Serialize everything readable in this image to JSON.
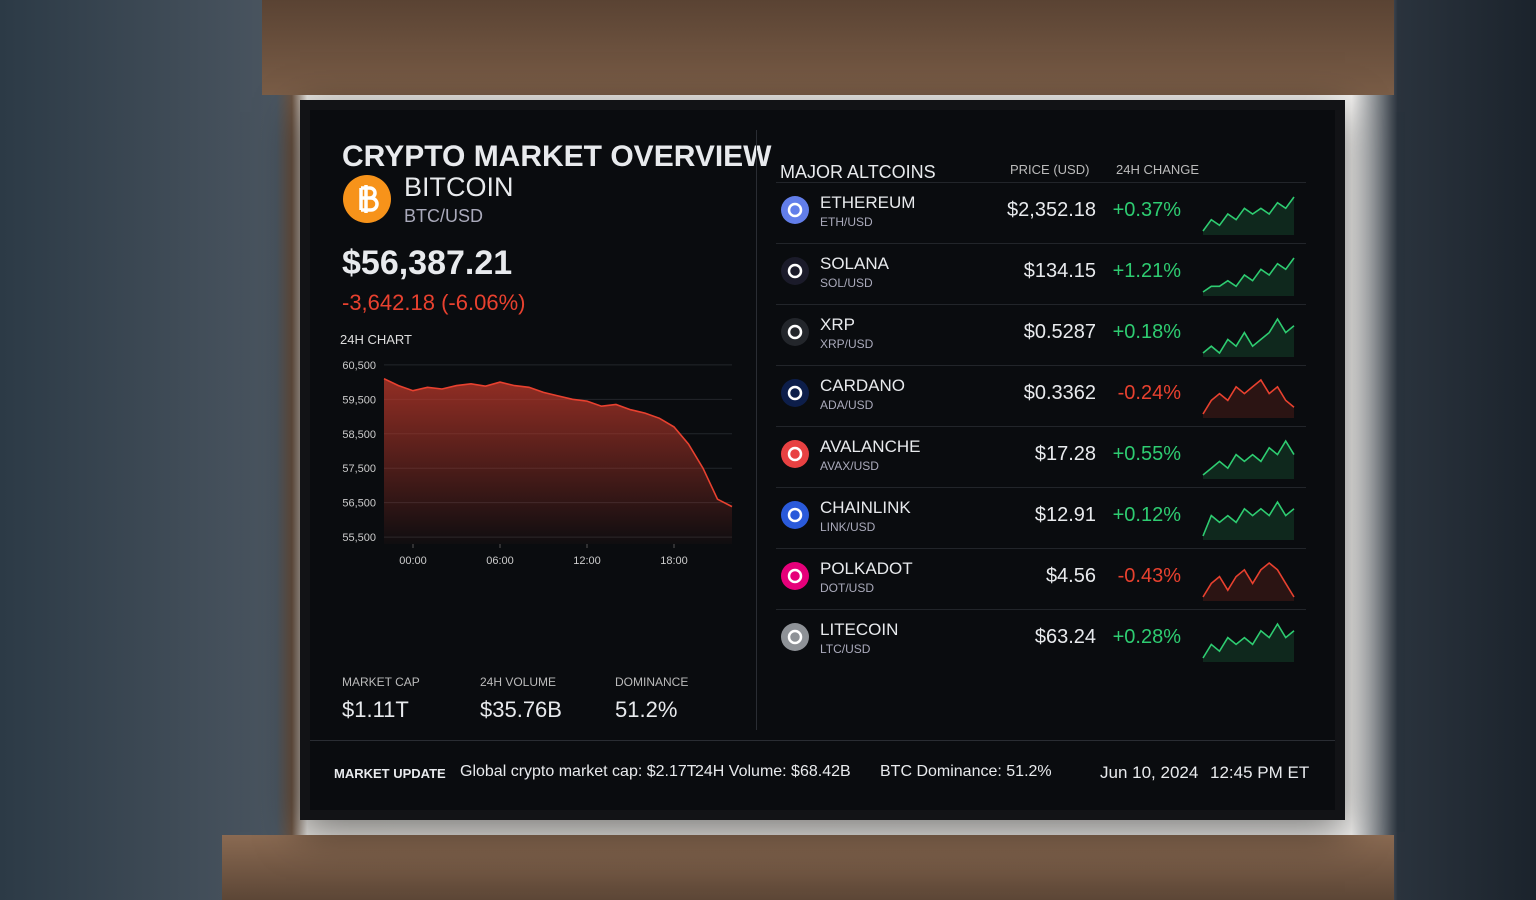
{
  "header": {
    "title": "CRYPTO MARKET OVERVIEW"
  },
  "bitcoin": {
    "name": "BITCOIN",
    "pair": "BTC/USD",
    "price": "$56,387.21",
    "change": "-3,642.18",
    "change_pct": "(-6.06%)"
  },
  "chart_data": {
    "type": "area",
    "title": "24H CHART",
    "color": "#e8412f",
    "x": [
      -2,
      -1,
      0,
      1,
      2,
      3,
      4,
      5,
      6,
      7,
      8,
      9,
      10,
      11,
      12,
      13,
      14,
      15,
      16,
      17,
      18,
      19,
      20,
      21,
      22
    ],
    "values": [
      60100,
      59900,
      59750,
      59850,
      59800,
      59900,
      59950,
      59880,
      60000,
      59900,
      59850,
      59700,
      59600,
      59500,
      59450,
      59300,
      59350,
      59200,
      59100,
      58950,
      58700,
      58200,
      57500,
      56600,
      56387
    ],
    "xlim": [
      -2,
      22
    ],
    "ylim": [
      55300,
      60700
    ],
    "xticks": [
      {
        "value": 0,
        "label": "00:00"
      },
      {
        "value": 6,
        "label": "06:00"
      },
      {
        "value": 12,
        "label": "12:00"
      },
      {
        "value": 18,
        "label": "18:00"
      }
    ],
    "yticks": [
      {
        "value": 55500,
        "label": "55,500"
      },
      {
        "value": 56500,
        "label": "56,500"
      },
      {
        "value": 57500,
        "label": "57,500"
      },
      {
        "value": 58500,
        "label": "58,500"
      },
      {
        "value": 59500,
        "label": "59,500"
      },
      {
        "value": 60500,
        "label": "60,500"
      }
    ],
    "grid": true
  },
  "altcoins": {
    "heading": "MAJOR ALTCOINS",
    "price_header": "PRICE (USD)",
    "change_header": "24H CHANGE",
    "rows": [
      {
        "name": "ETHEREUM",
        "pair": "ETH/USD",
        "price": "$2,352.18",
        "change": "+0.37%",
        "color": "#2ecc71",
        "icon": "#627eea",
        "spark": [
          2,
          4,
          3,
          5,
          4,
          6,
          5,
          6,
          5,
          7,
          6,
          8
        ]
      },
      {
        "name": "SOLANA",
        "pair": "SOL/USD",
        "price": "$134.15",
        "change": "+1.21%",
        "color": "#2ecc71",
        "icon": "#1b1b2a",
        "spark": [
          1,
          2,
          2,
          3,
          2,
          4,
          3,
          5,
          4,
          6,
          5,
          7
        ]
      },
      {
        "name": "XRP",
        "pair": "XRP/USD",
        "price": "$0.5287",
        "change": "+0.18%",
        "color": "#2ecc71",
        "icon": "#23262b",
        "spark": [
          2,
          3,
          2,
          4,
          3,
          5,
          3,
          4,
          5,
          7,
          5,
          6
        ]
      },
      {
        "name": "CARDANO",
        "pair": "ADA/USD",
        "price": "$0.3362",
        "change": "-0.24%",
        "color": "#e8412f",
        "icon": "#0d1e4a",
        "spark": [
          2,
          4,
          5,
          4,
          6,
          5,
          6,
          7,
          5,
          6,
          4,
          3
        ]
      },
      {
        "name": "AVALANCHE",
        "pair": "AVAX/USD",
        "price": "$17.28",
        "change": "+0.55%",
        "color": "#2ecc71",
        "icon": "#e84142",
        "spark": [
          2,
          3,
          4,
          3,
          5,
          4,
          5,
          4,
          6,
          5,
          7,
          5
        ]
      },
      {
        "name": "CHAINLINK",
        "pair": "LINK/USD",
        "price": "$12.91",
        "change": "+0.12%",
        "color": "#2ecc71",
        "icon": "#2a5ada",
        "spark": [
          2,
          5,
          4,
          5,
          4,
          6,
          5,
          6,
          5,
          7,
          5,
          6
        ]
      },
      {
        "name": "POLKADOT",
        "pair": "DOT/USD",
        "price": "$4.56",
        "change": "-0.43%",
        "color": "#e8412f",
        "icon": "#e6007a",
        "spark": [
          2,
          4,
          5,
          3,
          5,
          6,
          4,
          6,
          7,
          6,
          4,
          2
        ]
      },
      {
        "name": "LITECOIN",
        "pair": "LTC/USD",
        "price": "$63.24",
        "change": "+0.28%",
        "color": "#2ecc71",
        "icon": "#8e9297",
        "spark": [
          2,
          4,
          3,
          5,
          4,
          5,
          4,
          6,
          5,
          7,
          5,
          6
        ]
      }
    ]
  },
  "stats": [
    {
      "label": "MARKET CAP",
      "value": "$1.11T"
    },
    {
      "label": "24H VOLUME",
      "value": "$35.76B"
    },
    {
      "label": "DOMINANCE",
      "value": "51.2%"
    }
  ],
  "ticker": {
    "label": "MARKET UPDATE",
    "items": [
      "Global crypto market cap: $2.17T",
      "24H Volume: $68.42B",
      "BTC Dominance: 51.2%"
    ],
    "date": "Jun 10, 2024",
    "time": "12:45 PM ET"
  }
}
